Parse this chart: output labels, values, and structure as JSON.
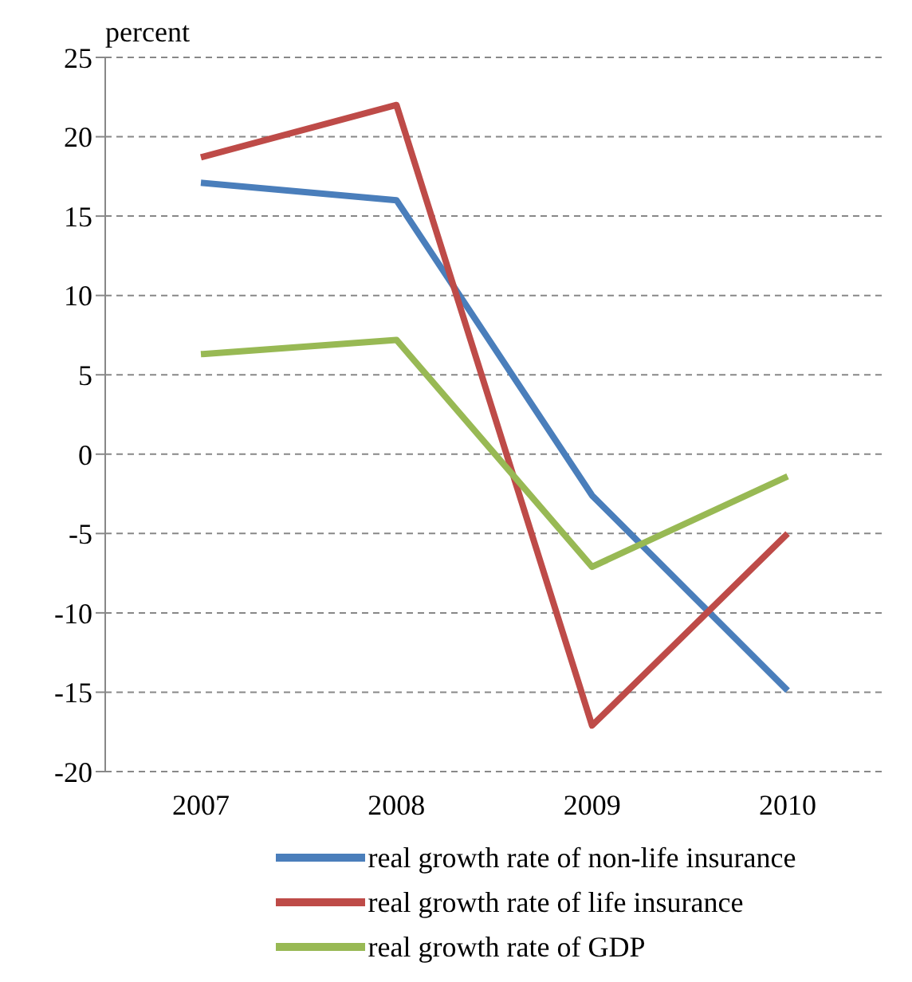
{
  "chart_data": {
    "type": "line",
    "ylabel": "percent",
    "categories": [
      "2007",
      "2008",
      "2009",
      "2010"
    ],
    "series": [
      {
        "name": "real growth rate of non-life insurance",
        "color": "#4a7ebb",
        "values": [
          17.1,
          16,
          -2.6,
          -14.9
        ]
      },
      {
        "name": "real growth rate of life insurance",
        "color": "#be4b48",
        "values": [
          18.7,
          22,
          -17.1,
          -5
        ]
      },
      {
        "name": "real growth rate of GDP",
        "color": "#98b954",
        "values": [
          6.3,
          7.2,
          -7.1,
          -1.4
        ]
      }
    ],
    "ylim": [
      -20,
      25
    ],
    "yticks": [
      -20,
      -15,
      -10,
      -5,
      0,
      5,
      10,
      15,
      20,
      25
    ],
    "grid": "y",
    "legend": "bottom",
    "marker": "none",
    "line_style": "solid"
  }
}
